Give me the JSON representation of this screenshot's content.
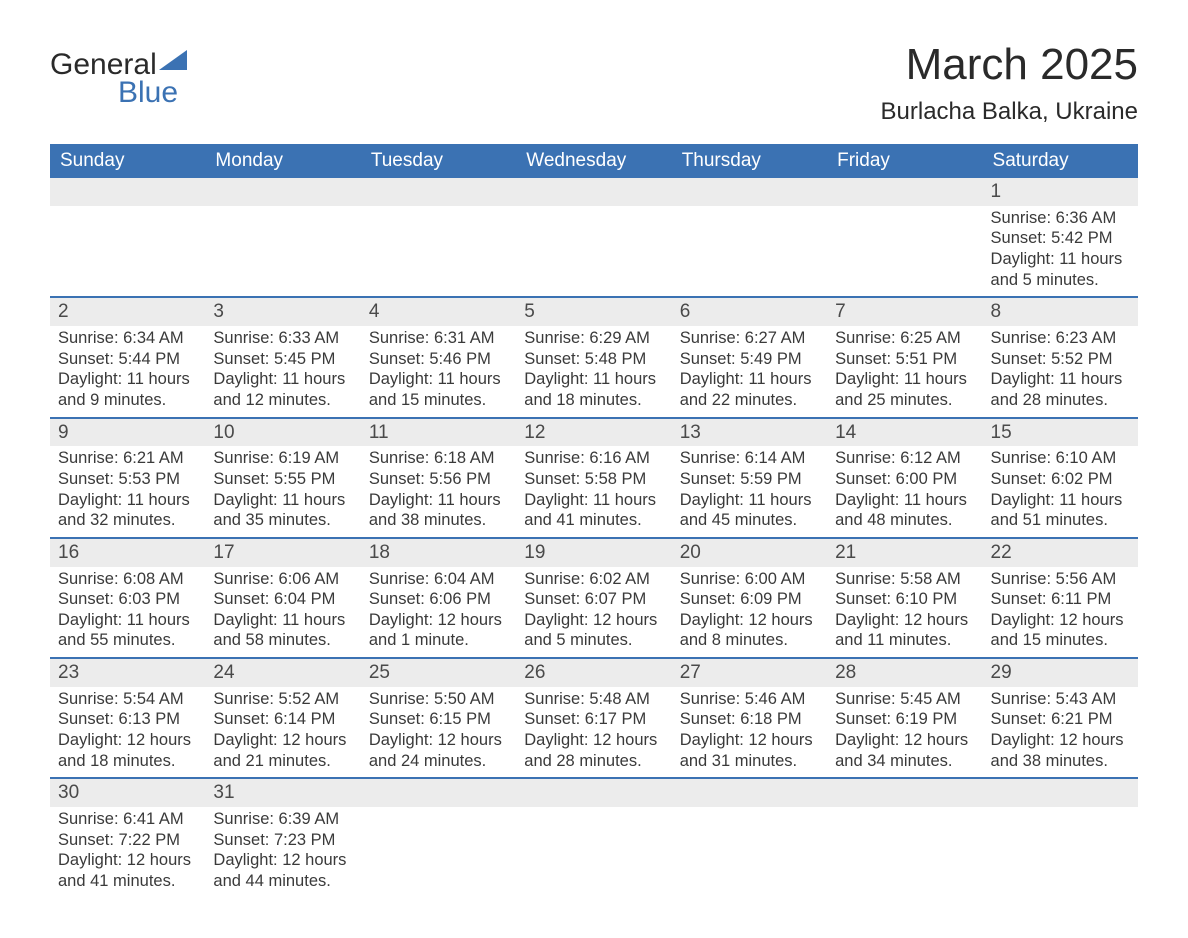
{
  "logo": {
    "word1": "General",
    "word2": "Blue"
  },
  "title": "March 2025",
  "location": "Burlacha Balka, Ukraine",
  "colors": {
    "header_bg": "#3b72b3",
    "header_text": "#ffffff",
    "daynum_bg": "#ececec",
    "row_border": "#3b72b3",
    "body_text": "#3a3a3a"
  },
  "font_sizes": {
    "title_pt": 33,
    "location_pt": 18,
    "dayhead_pt": 14,
    "cell_pt": 12
  },
  "day_headers": [
    "Sunday",
    "Monday",
    "Tuesday",
    "Wednesday",
    "Thursday",
    "Friday",
    "Saturday"
  ],
  "weeks": [
    {
      "nums": [
        "",
        "",
        "",
        "",
        "",
        "",
        "1"
      ],
      "cells": [
        null,
        null,
        null,
        null,
        null,
        null,
        {
          "sunrise": "Sunrise: 6:36 AM",
          "sunset": "Sunset: 5:42 PM",
          "day1": "Daylight: 11 hours",
          "day2": "and 5 minutes."
        }
      ]
    },
    {
      "nums": [
        "2",
        "3",
        "4",
        "5",
        "6",
        "7",
        "8"
      ],
      "cells": [
        {
          "sunrise": "Sunrise: 6:34 AM",
          "sunset": "Sunset: 5:44 PM",
          "day1": "Daylight: 11 hours",
          "day2": "and 9 minutes."
        },
        {
          "sunrise": "Sunrise: 6:33 AM",
          "sunset": "Sunset: 5:45 PM",
          "day1": "Daylight: 11 hours",
          "day2": "and 12 minutes."
        },
        {
          "sunrise": "Sunrise: 6:31 AM",
          "sunset": "Sunset: 5:46 PM",
          "day1": "Daylight: 11 hours",
          "day2": "and 15 minutes."
        },
        {
          "sunrise": "Sunrise: 6:29 AM",
          "sunset": "Sunset: 5:48 PM",
          "day1": "Daylight: 11 hours",
          "day2": "and 18 minutes."
        },
        {
          "sunrise": "Sunrise: 6:27 AM",
          "sunset": "Sunset: 5:49 PM",
          "day1": "Daylight: 11 hours",
          "day2": "and 22 minutes."
        },
        {
          "sunrise": "Sunrise: 6:25 AM",
          "sunset": "Sunset: 5:51 PM",
          "day1": "Daylight: 11 hours",
          "day2": "and 25 minutes."
        },
        {
          "sunrise": "Sunrise: 6:23 AM",
          "sunset": "Sunset: 5:52 PM",
          "day1": "Daylight: 11 hours",
          "day2": "and 28 minutes."
        }
      ]
    },
    {
      "nums": [
        "9",
        "10",
        "11",
        "12",
        "13",
        "14",
        "15"
      ],
      "cells": [
        {
          "sunrise": "Sunrise: 6:21 AM",
          "sunset": "Sunset: 5:53 PM",
          "day1": "Daylight: 11 hours",
          "day2": "and 32 minutes."
        },
        {
          "sunrise": "Sunrise: 6:19 AM",
          "sunset": "Sunset: 5:55 PM",
          "day1": "Daylight: 11 hours",
          "day2": "and 35 minutes."
        },
        {
          "sunrise": "Sunrise: 6:18 AM",
          "sunset": "Sunset: 5:56 PM",
          "day1": "Daylight: 11 hours",
          "day2": "and 38 minutes."
        },
        {
          "sunrise": "Sunrise: 6:16 AM",
          "sunset": "Sunset: 5:58 PM",
          "day1": "Daylight: 11 hours",
          "day2": "and 41 minutes."
        },
        {
          "sunrise": "Sunrise: 6:14 AM",
          "sunset": "Sunset: 5:59 PM",
          "day1": "Daylight: 11 hours",
          "day2": "and 45 minutes."
        },
        {
          "sunrise": "Sunrise: 6:12 AM",
          "sunset": "Sunset: 6:00 PM",
          "day1": "Daylight: 11 hours",
          "day2": "and 48 minutes."
        },
        {
          "sunrise": "Sunrise: 6:10 AM",
          "sunset": "Sunset: 6:02 PM",
          "day1": "Daylight: 11 hours",
          "day2": "and 51 minutes."
        }
      ]
    },
    {
      "nums": [
        "16",
        "17",
        "18",
        "19",
        "20",
        "21",
        "22"
      ],
      "cells": [
        {
          "sunrise": "Sunrise: 6:08 AM",
          "sunset": "Sunset: 6:03 PM",
          "day1": "Daylight: 11 hours",
          "day2": "and 55 minutes."
        },
        {
          "sunrise": "Sunrise: 6:06 AM",
          "sunset": "Sunset: 6:04 PM",
          "day1": "Daylight: 11 hours",
          "day2": "and 58 minutes."
        },
        {
          "sunrise": "Sunrise: 6:04 AM",
          "sunset": "Sunset: 6:06 PM",
          "day1": "Daylight: 12 hours",
          "day2": "and 1 minute."
        },
        {
          "sunrise": "Sunrise: 6:02 AM",
          "sunset": "Sunset: 6:07 PM",
          "day1": "Daylight: 12 hours",
          "day2": "and 5 minutes."
        },
        {
          "sunrise": "Sunrise: 6:00 AM",
          "sunset": "Sunset: 6:09 PM",
          "day1": "Daylight: 12 hours",
          "day2": "and 8 minutes."
        },
        {
          "sunrise": "Sunrise: 5:58 AM",
          "sunset": "Sunset: 6:10 PM",
          "day1": "Daylight: 12 hours",
          "day2": "and 11 minutes."
        },
        {
          "sunrise": "Sunrise: 5:56 AM",
          "sunset": "Sunset: 6:11 PM",
          "day1": "Daylight: 12 hours",
          "day2": "and 15 minutes."
        }
      ]
    },
    {
      "nums": [
        "23",
        "24",
        "25",
        "26",
        "27",
        "28",
        "29"
      ],
      "cells": [
        {
          "sunrise": "Sunrise: 5:54 AM",
          "sunset": "Sunset: 6:13 PM",
          "day1": "Daylight: 12 hours",
          "day2": "and 18 minutes."
        },
        {
          "sunrise": "Sunrise: 5:52 AM",
          "sunset": "Sunset: 6:14 PM",
          "day1": "Daylight: 12 hours",
          "day2": "and 21 minutes."
        },
        {
          "sunrise": "Sunrise: 5:50 AM",
          "sunset": "Sunset: 6:15 PM",
          "day1": "Daylight: 12 hours",
          "day2": "and 24 minutes."
        },
        {
          "sunrise": "Sunrise: 5:48 AM",
          "sunset": "Sunset: 6:17 PM",
          "day1": "Daylight: 12 hours",
          "day2": "and 28 minutes."
        },
        {
          "sunrise": "Sunrise: 5:46 AM",
          "sunset": "Sunset: 6:18 PM",
          "day1": "Daylight: 12 hours",
          "day2": "and 31 minutes."
        },
        {
          "sunrise": "Sunrise: 5:45 AM",
          "sunset": "Sunset: 6:19 PM",
          "day1": "Daylight: 12 hours",
          "day2": "and 34 minutes."
        },
        {
          "sunrise": "Sunrise: 5:43 AM",
          "sunset": "Sunset: 6:21 PM",
          "day1": "Daylight: 12 hours",
          "day2": "and 38 minutes."
        }
      ]
    },
    {
      "nums": [
        "30",
        "31",
        "",
        "",
        "",
        "",
        ""
      ],
      "cells": [
        {
          "sunrise": "Sunrise: 6:41 AM",
          "sunset": "Sunset: 7:22 PM",
          "day1": "Daylight: 12 hours",
          "day2": "and 41 minutes."
        },
        {
          "sunrise": "Sunrise: 6:39 AM",
          "sunset": "Sunset: 7:23 PM",
          "day1": "Daylight: 12 hours",
          "day2": "and 44 minutes."
        },
        null,
        null,
        null,
        null,
        null
      ]
    }
  ]
}
